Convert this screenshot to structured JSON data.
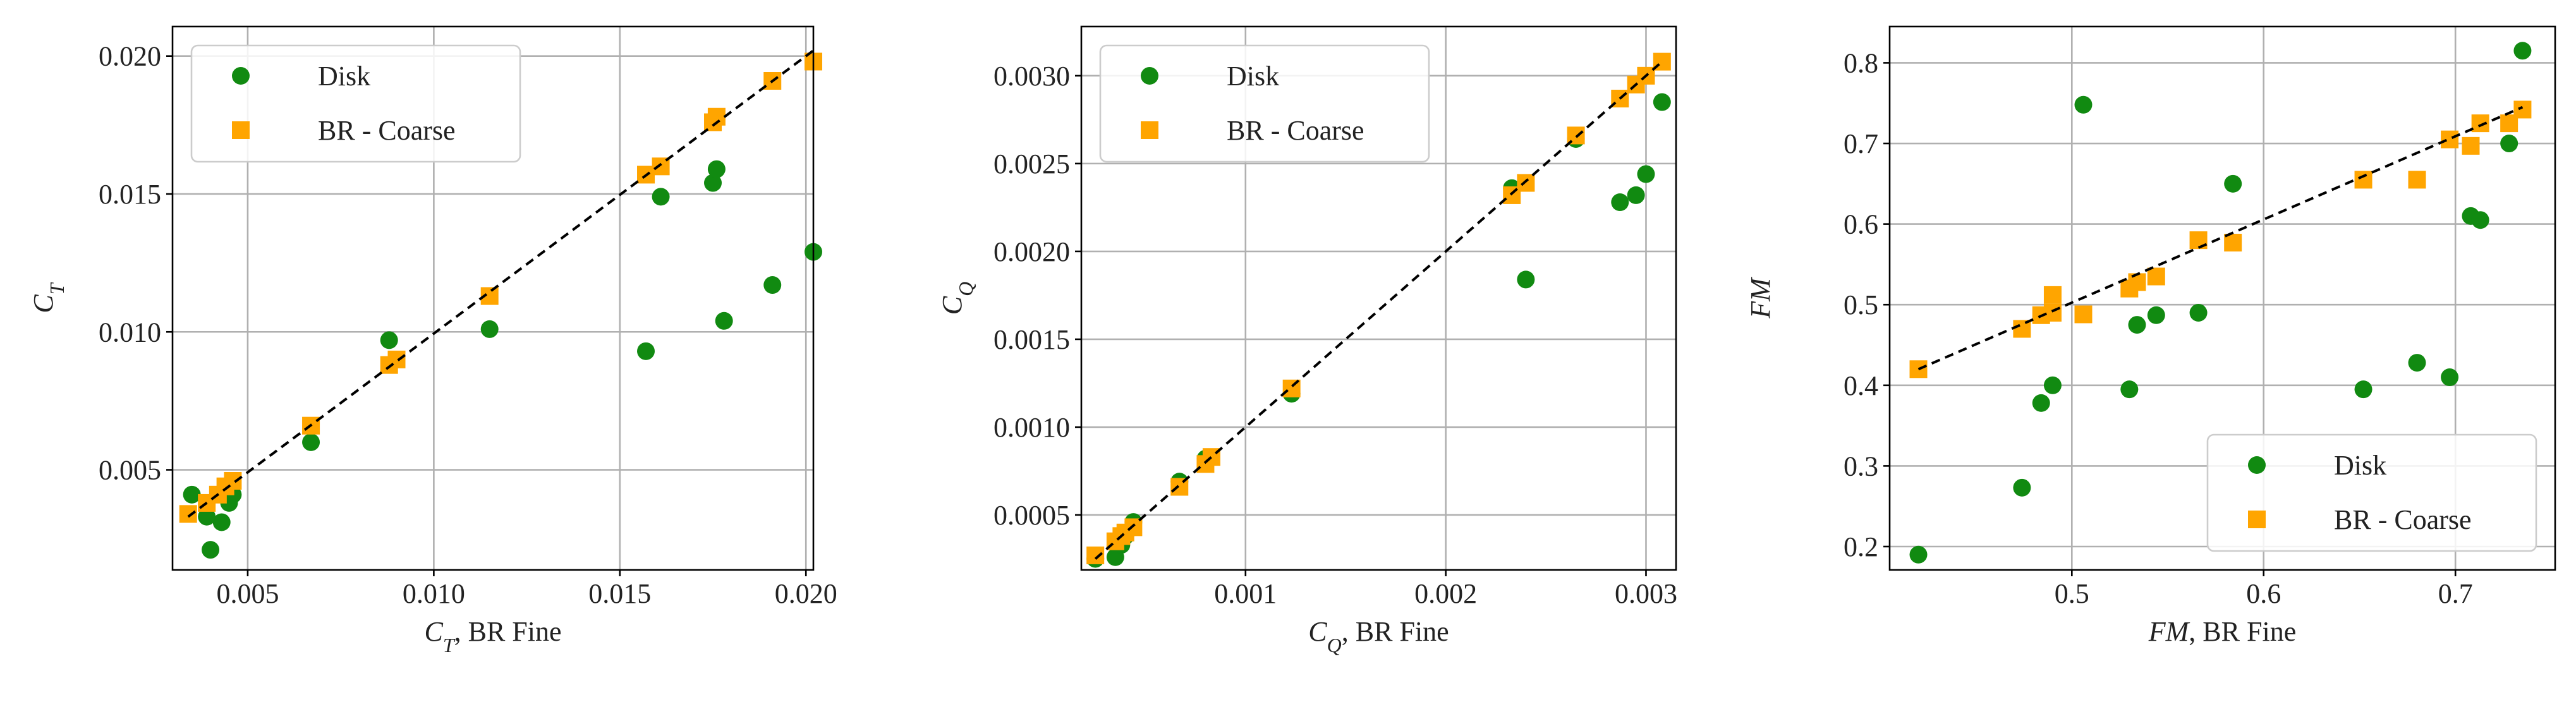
{
  "chart_data": [
    {
      "type": "scatter",
      "x_label": [
        {
          "text": "C",
          "italic": true
        },
        {
          "text": "T",
          "italic": true,
          "sub": true
        },
        {
          "text": ", BR Fine"
        }
      ],
      "y_label": [
        {
          "text": "C",
          "italic": true
        },
        {
          "text": "T",
          "italic": true,
          "sub": true
        }
      ],
      "xlim": [
        0.00298,
        0.0202
      ],
      "ylim": [
        0.00137,
        0.02107
      ],
      "xticks": [
        {
          "value": 0.005,
          "label": "0.005"
        },
        {
          "value": 0.01,
          "label": "0.010"
        },
        {
          "value": 0.015,
          "label": "0.015"
        },
        {
          "value": 0.02,
          "label": "0.020"
        }
      ],
      "yticks": [
        {
          "value": 0.005,
          "label": "0.005"
        },
        {
          "value": 0.01,
          "label": "0.010"
        },
        {
          "value": 0.015,
          "label": "0.015"
        },
        {
          "value": 0.02,
          "label": "0.020"
        }
      ],
      "grid": true,
      "legend": "upper left",
      "series": [
        {
          "name": "Disk",
          "color": "#118a11",
          "marker": "circle",
          "x": [
            0.0035,
            0.0039,
            0.004,
            0.0043,
            0.0045,
            0.0046,
            0.0067,
            0.0088,
            0.0115,
            0.0157,
            0.0161,
            0.0175,
            0.0176,
            0.0178,
            0.0191,
            0.0202
          ],
          "y": [
            0.0041,
            0.0033,
            0.0021,
            0.0031,
            0.0038,
            0.0041,
            0.006,
            0.0097,
            0.0101,
            0.0093,
            0.0149,
            0.0154,
            0.0159,
            0.0104,
            0.0117,
            0.0129
          ]
        },
        {
          "name": "BR - Coarse",
          "color": "#ffa500",
          "marker": "square",
          "x": [
            0.0034,
            0.0039,
            0.0042,
            0.0044,
            0.0046,
            0.0067,
            0.0088,
            0.009,
            0.0115,
            0.0157,
            0.0161,
            0.0175,
            0.0176,
            0.0191,
            0.0202
          ],
          "y": [
            0.0034,
            0.0038,
            0.0041,
            0.0044,
            0.0046,
            0.0066,
            0.0088,
            0.009,
            0.0113,
            0.0157,
            0.016,
            0.0176,
            0.0178,
            0.0191,
            0.0198
          ]
        }
      ],
      "reference_line": {
        "color": "#000000",
        "dashed": true,
        "x": [
          0.0034,
          0.0202
        ],
        "y": [
          0.0033,
          0.0202
        ]
      }
    },
    {
      "type": "scatter",
      "x_label": [
        {
          "text": "C",
          "italic": true
        },
        {
          "text": "Q",
          "italic": true,
          "sub": true
        },
        {
          "text": ", BR Fine"
        }
      ],
      "y_label": [
        {
          "text": "C",
          "italic": true
        },
        {
          "text": "Q",
          "italic": true,
          "sub": true
        }
      ],
      "xlim": [
        0.00018,
        0.00315
      ],
      "ylim": [
        0.000187,
        0.00328
      ],
      "xticks": [
        {
          "value": 0.001,
          "label": "0.001"
        },
        {
          "value": 0.002,
          "label": "0.002"
        },
        {
          "value": 0.003,
          "label": "0.003"
        }
      ],
      "yticks": [
        {
          "value": 0.0005,
          "label": "0.0005"
        },
        {
          "value": 0.001,
          "label": "0.0010"
        },
        {
          "value": 0.0015,
          "label": "0.0015"
        },
        {
          "value": 0.002,
          "label": "0.0020"
        },
        {
          "value": 0.0025,
          "label": "0.0025"
        },
        {
          "value": 0.003,
          "label": "0.0030"
        }
      ],
      "grid": true,
      "legend": "upper left",
      "series": [
        {
          "name": "Disk",
          "color": "#118a11",
          "marker": "circle",
          "x": [
            0.00025,
            0.00035,
            0.00038,
            0.0004,
            0.00044,
            0.00067,
            0.0008,
            0.00123,
            0.00233,
            0.0024,
            0.00265,
            0.00287,
            0.00295,
            0.003,
            0.00308
          ],
          "y": [
            0.00025,
            0.00026,
            0.00033,
            0.00038,
            0.00046,
            0.00069,
            0.00082,
            0.00119,
            0.00236,
            0.00184,
            0.00264,
            0.00228,
            0.00232,
            0.00244,
            0.00285
          ]
        },
        {
          "name": "BR - Coarse",
          "color": "#ffa500",
          "marker": "square",
          "x": [
            0.00025,
            0.00035,
            0.00038,
            0.0004,
            0.00044,
            0.00067,
            0.0008,
            0.00083,
            0.00123,
            0.00233,
            0.0024,
            0.00265,
            0.00287,
            0.00295,
            0.003,
            0.00308
          ],
          "y": [
            0.00027,
            0.00035,
            0.00038,
            0.0004,
            0.00043,
            0.00066,
            0.00079,
            0.00083,
            0.00122,
            0.00232,
            0.00239,
            0.00266,
            0.00287,
            0.00295,
            0.003,
            0.00308
          ]
        }
      ],
      "reference_line": {
        "color": "#000000",
        "dashed": true,
        "x": [
          0.00025,
          0.00308
        ],
        "y": [
          0.00025,
          0.00308
        ]
      }
    },
    {
      "type": "scatter",
      "x_label": [
        {
          "text": "FM",
          "italic": true
        },
        {
          "text": ", BR Fine"
        }
      ],
      "y_label": [
        {
          "text": "FM",
          "italic": true
        }
      ],
      "xlim": [
        0.405,
        0.752
      ],
      "ylim": [
        0.171,
        0.845
      ],
      "xticks": [
        0.5,
        0.6,
        0.7
      ],
      "yticks": [
        0.2,
        0.3,
        0.4,
        0.5,
        0.6,
        0.7,
        0.8
      ],
      "grid": true,
      "legend": "lower right",
      "series": [
        {
          "name": "Disk",
          "color": "#118a11",
          "marker": "circle",
          "x": [
            0.42,
            0.474,
            0.484,
            0.49,
            0.506,
            0.53,
            0.534,
            0.544,
            0.566,
            0.584,
            0.652,
            0.68,
            0.697,
            0.708,
            0.713,
            0.728,
            0.735
          ],
          "y": [
            0.19,
            0.273,
            0.378,
            0.4,
            0.748,
            0.395,
            0.475,
            0.487,
            0.49,
            0.65,
            0.395,
            0.428,
            0.41,
            0.61,
            0.605,
            0.7,
            0.815
          ]
        },
        {
          "name": "BR - Coarse",
          "color": "#ffa500",
          "marker": "square",
          "x": [
            0.42,
            0.474,
            0.484,
            0.49,
            0.49,
            0.506,
            0.53,
            0.534,
            0.544,
            0.566,
            0.584,
            0.652,
            0.68,
            0.697,
            0.708,
            0.713,
            0.728,
            0.735
          ],
          "y": [
            0.42,
            0.47,
            0.487,
            0.512,
            0.49,
            0.488,
            0.52,
            0.528,
            0.535,
            0.58,
            0.577,
            0.655,
            0.655,
            0.705,
            0.697,
            0.725,
            0.725,
            0.742
          ]
        }
      ],
      "reference_line": {
        "color": "#000000",
        "dashed": true,
        "x": [
          0.42,
          0.735
        ],
        "y": [
          0.42,
          0.745
        ]
      }
    }
  ]
}
